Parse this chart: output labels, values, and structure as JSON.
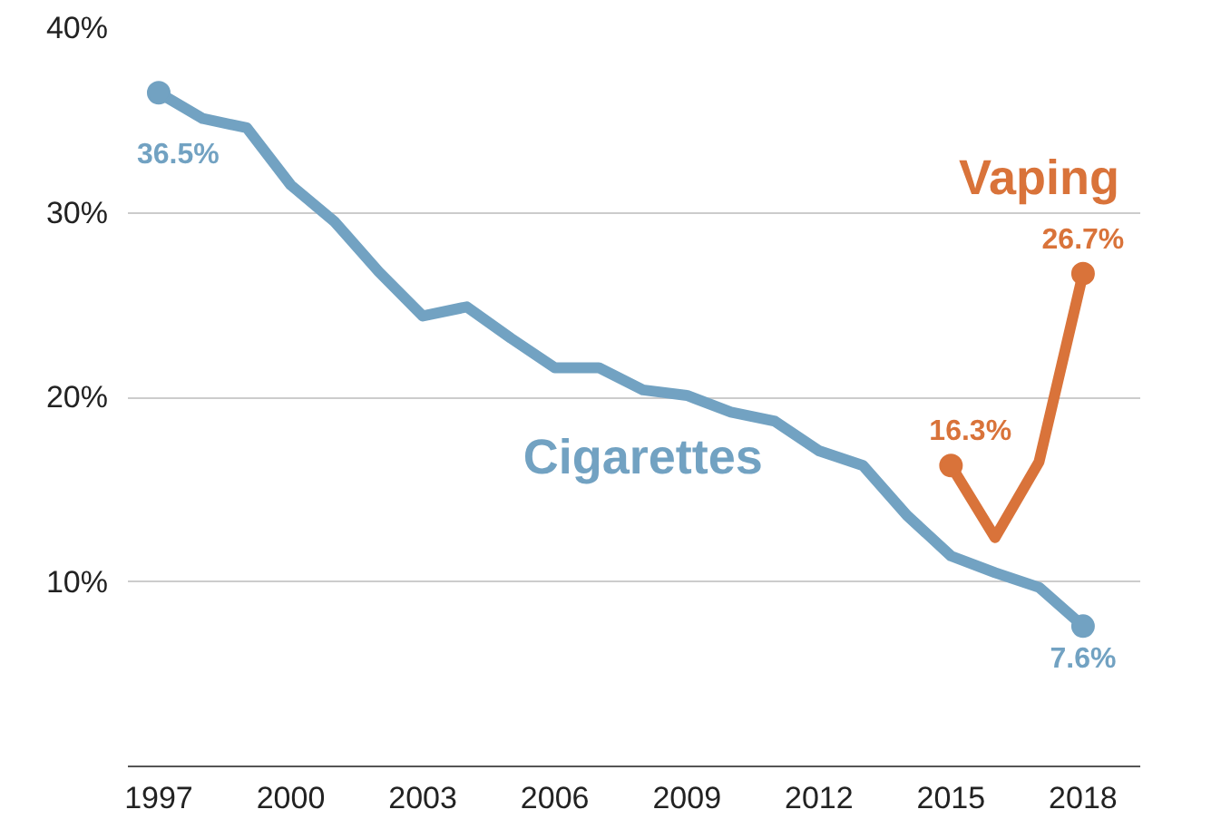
{
  "chart_data": {
    "type": "line",
    "x": [
      1997,
      1998,
      1999,
      2000,
      2001,
      2002,
      2003,
      2004,
      2005,
      2006,
      2007,
      2008,
      2009,
      2010,
      2011,
      2012,
      2013,
      2014,
      2015,
      2016,
      2017,
      2018
    ],
    "xlim": [
      1996.3,
      2019.3
    ],
    "xticks": [
      1997,
      2000,
      2003,
      2006,
      2009,
      2012,
      2015,
      2018
    ],
    "ylim": [
      0,
      40
    ],
    "yticks": [
      {
        "value": 10,
        "label": "10%"
      },
      {
        "value": 20,
        "label": "20%"
      },
      {
        "value": 30,
        "label": "30%"
      },
      {
        "value": 40,
        "label": "40%"
      }
    ],
    "grid": "y",
    "line_style": "solid",
    "series": [
      {
        "name": "Cigarettes",
        "color": "#72a2c2",
        "values": [
          36.5,
          35.1,
          34.6,
          31.5,
          29.5,
          26.8,
          24.4,
          24.9,
          23.2,
          21.6,
          21.6,
          20.4,
          20.1,
          19.2,
          18.7,
          17.1,
          16.3,
          13.6,
          11.4,
          10.5,
          9.7,
          7.6
        ],
        "value_labels": [
          "36.5%",
          null,
          null,
          null,
          null,
          null,
          null,
          null,
          null,
          null,
          null,
          null,
          null,
          null,
          null,
          null,
          null,
          null,
          null,
          null,
          null,
          "7.6%"
        ]
      },
      {
        "name": "Vaping",
        "color": "#d9733a",
        "x": [
          2015,
          2016,
          2017,
          2018
        ],
        "values": [
          16.3,
          12.4,
          16.5,
          26.7
        ],
        "value_labels": [
          "16.3%",
          null,
          null,
          "26.7%"
        ]
      }
    ]
  }
}
